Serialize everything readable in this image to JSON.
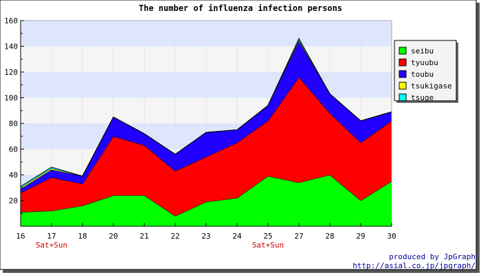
{
  "chart_data": {
    "type": "area",
    "title": "The number of influenza infection persons",
    "xlabel": "",
    "ylabel": "",
    "stacked": true,
    "categories": [
      "16",
      "17",
      "18",
      "20",
      "21",
      "22",
      "23",
      "24",
      "25",
      "27",
      "28",
      "29",
      "30"
    ],
    "weekend_labels": [
      {
        "category": "17",
        "label": "Sat+Sun"
      },
      {
        "category": "25",
        "label": "Sat+Sun"
      }
    ],
    "ylim": [
      0,
      160
    ],
    "yticks": [
      20,
      40,
      60,
      80,
      100,
      120,
      140,
      160
    ],
    "grid": true,
    "legend_position": "right",
    "series": [
      {
        "name": "seibu",
        "color": "#00ff00",
        "values": [
          11,
          12,
          16,
          24,
          24,
          8,
          19,
          22,
          39,
          34,
          40,
          20,
          35
        ]
      },
      {
        "name": "tyuubu",
        "color": "#ff0000",
        "values": [
          15,
          26,
          17,
          46,
          39,
          35,
          35,
          43,
          43,
          82,
          48,
          45,
          47
        ]
      },
      {
        "name": "toubu",
        "color": "#2200ff",
        "values": [
          3,
          6,
          6,
          15,
          9,
          13,
          19,
          10,
          12,
          28,
          15,
          17,
          7
        ]
      },
      {
        "name": "tsukigase",
        "color": "#ffff00",
        "values": [
          1,
          1,
          0,
          0,
          0,
          0,
          0,
          0,
          0,
          1,
          0,
          0,
          0
        ]
      },
      {
        "name": "tsuge",
        "color": "#00ffff",
        "values": [
          1,
          1,
          0,
          0,
          0,
          0,
          0,
          0,
          0,
          1,
          0,
          0,
          0
        ]
      }
    ]
  },
  "footer": {
    "credit": "produced by JpGraph",
    "url": "http://asial.co.jp/jpgraph/"
  }
}
